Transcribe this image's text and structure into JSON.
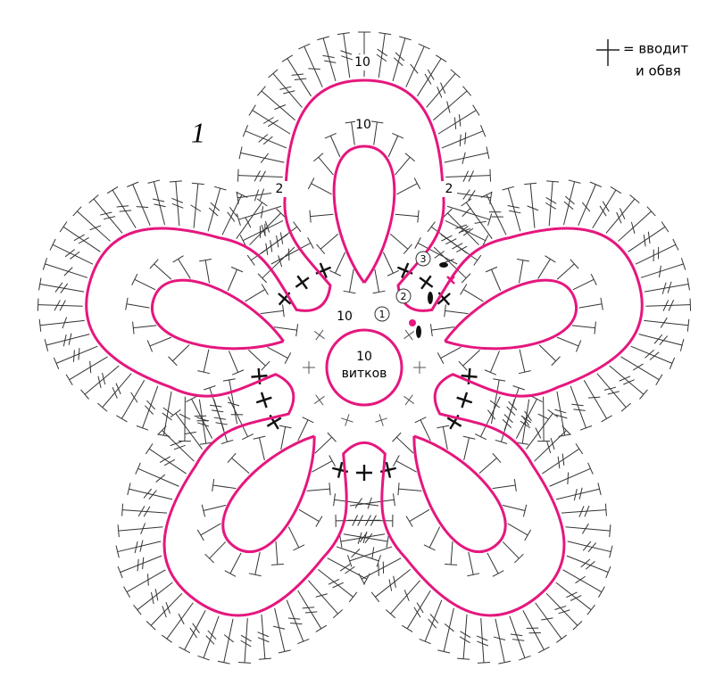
{
  "figure_label": "1",
  "legend": {
    "line1": "= вводит",
    "line2": "и обвя"
  },
  "center": {
    "count": "10",
    "unit": "витков"
  },
  "labels": [
    {
      "text": "10"
    },
    {
      "text": "10"
    },
    {
      "text": "2"
    },
    {
      "text": "2"
    },
    {
      "text": "10"
    }
  ],
  "steps": [
    {
      "text": "1"
    },
    {
      "text": "2"
    },
    {
      "text": "3"
    }
  ]
}
